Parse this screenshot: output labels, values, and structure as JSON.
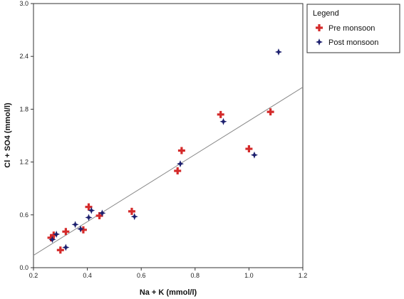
{
  "chart_data": {
    "type": "scatter",
    "title": "",
    "xlabel": "Na + K (mmol/l)",
    "ylabel": "Cl + SO4 (mmol/l)",
    "xlim": [
      0.2,
      1.2
    ],
    "ylim": [
      0.0,
      3.0
    ],
    "x_ticks": [
      "0.2",
      "0.4",
      "0.6",
      "0.8",
      "1.0",
      "1.2"
    ],
    "y_ticks": [
      "0.0",
      "0.6",
      "1.2",
      "1.8",
      "2.4",
      "3.0"
    ],
    "grid": false,
    "legend": {
      "title": "Legend",
      "placement": "outside-right"
    },
    "series": [
      {
        "name": "Pre monsoon",
        "marker": "plus",
        "color": "#d42a2a",
        "points": [
          [
            0.265,
            0.34
          ],
          [
            0.275,
            0.37
          ],
          [
            0.3,
            0.2
          ],
          [
            0.32,
            0.41
          ],
          [
            0.385,
            0.43
          ],
          [
            0.405,
            0.69
          ],
          [
            0.445,
            0.59
          ],
          [
            0.565,
            0.64
          ],
          [
            0.735,
            1.1
          ],
          [
            0.75,
            1.33
          ],
          [
            0.895,
            1.74
          ],
          [
            1.0,
            1.35
          ],
          [
            1.08,
            1.77
          ]
        ]
      },
      {
        "name": "Post monsoon",
        "marker": "star4",
        "color": "#1c1f6e",
        "points": [
          [
            0.27,
            0.32
          ],
          [
            0.285,
            0.38
          ],
          [
            0.32,
            0.23
          ],
          [
            0.355,
            0.49
          ],
          [
            0.375,
            0.44
          ],
          [
            0.405,
            0.57
          ],
          [
            0.415,
            0.65
          ],
          [
            0.455,
            0.62
          ],
          [
            0.575,
            0.58
          ],
          [
            0.745,
            1.18
          ],
          [
            0.905,
            1.66
          ],
          [
            1.02,
            1.28
          ],
          [
            1.11,
            2.45
          ]
        ]
      }
    ],
    "trendline": {
      "x": [
        0.2,
        1.2
      ],
      "y": [
        0.14,
        2.05
      ],
      "color": "#888888"
    }
  }
}
